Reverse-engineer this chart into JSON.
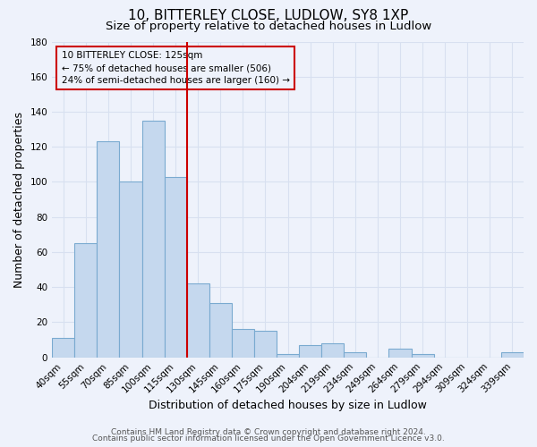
{
  "title": "10, BITTERLEY CLOSE, LUDLOW, SY8 1XP",
  "subtitle": "Size of property relative to detached houses in Ludlow",
  "xlabel": "Distribution of detached houses by size in Ludlow",
  "ylabel": "Number of detached properties",
  "bar_labels": [
    "40sqm",
    "55sqm",
    "70sqm",
    "85sqm",
    "100sqm",
    "115sqm",
    "130sqm",
    "145sqm",
    "160sqm",
    "175sqm",
    "190sqm",
    "204sqm",
    "219sqm",
    "234sqm",
    "249sqm",
    "264sqm",
    "279sqm",
    "294sqm",
    "309sqm",
    "324sqm",
    "339sqm"
  ],
  "bar_values": [
    11,
    65,
    123,
    100,
    135,
    103,
    42,
    31,
    16,
    15,
    2,
    7,
    8,
    3,
    0,
    5,
    2,
    0,
    0,
    0,
    3
  ],
  "bar_color": "#c5d8ee",
  "bar_edge_color": "#7aaad0",
  "vline_x": 6.0,
  "vline_color": "#cc0000",
  "annotation_title": "10 BITTERLEY CLOSE: 125sqm",
  "annotation_line1": "← 75% of detached houses are smaller (506)",
  "annotation_line2": "24% of semi-detached houses are larger (160) →",
  "ylim": [
    0,
    180
  ],
  "yticks": [
    0,
    20,
    40,
    60,
    80,
    100,
    120,
    140,
    160,
    180
  ],
  "footer1": "Contains HM Land Registry data © Crown copyright and database right 2024.",
  "footer2": "Contains public sector information licensed under the Open Government Licence v3.0.",
  "bg_color": "#eef2fb",
  "grid_color": "#d8e0f0",
  "title_fontsize": 11,
  "subtitle_fontsize": 9.5,
  "label_fontsize": 9,
  "tick_fontsize": 7.5,
  "footer_fontsize": 6.5
}
